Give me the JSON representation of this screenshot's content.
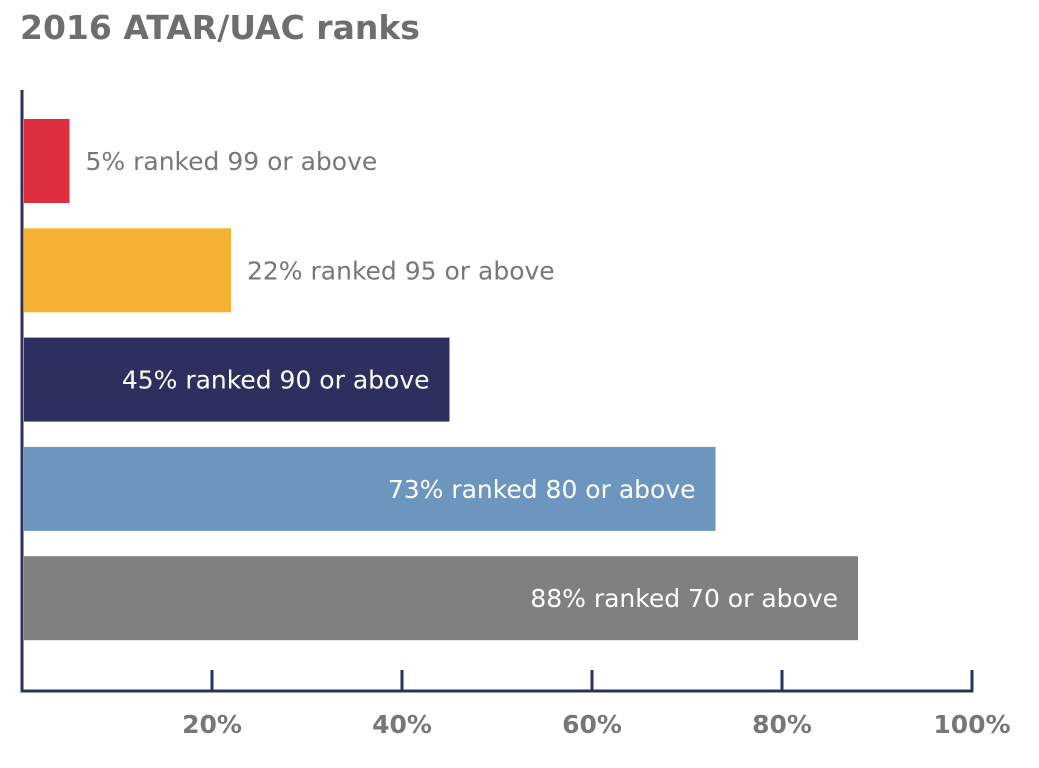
{
  "chart_data": {
    "type": "bar",
    "orientation": "horizontal",
    "title": "2016 ATAR/UAC ranks",
    "categories": [
      "5% ranked 99 or above",
      "22% ranked 95 or above",
      "45% ranked 90 or above",
      "73% ranked 80 or above",
      "88% ranked 70 or above"
    ],
    "values": [
      5,
      22,
      45,
      73,
      88
    ],
    "bar_colors": [
      "#dc2e3c",
      "#f6b233",
      "#2d305e",
      "#6d96be",
      "#808080"
    ],
    "label_colors": [
      "#777777",
      "#777777",
      "#ffffff",
      "#ffffff",
      "#ffffff"
    ],
    "label_inside": [
      false,
      false,
      true,
      true,
      true
    ],
    "xlim": [
      0,
      100
    ],
    "xticks": [
      20,
      40,
      60,
      80,
      100
    ],
    "xtick_labels": [
      "20%",
      "40%",
      "60%",
      "80%",
      "100%"
    ],
    "grid": false,
    "legend": "none"
  }
}
